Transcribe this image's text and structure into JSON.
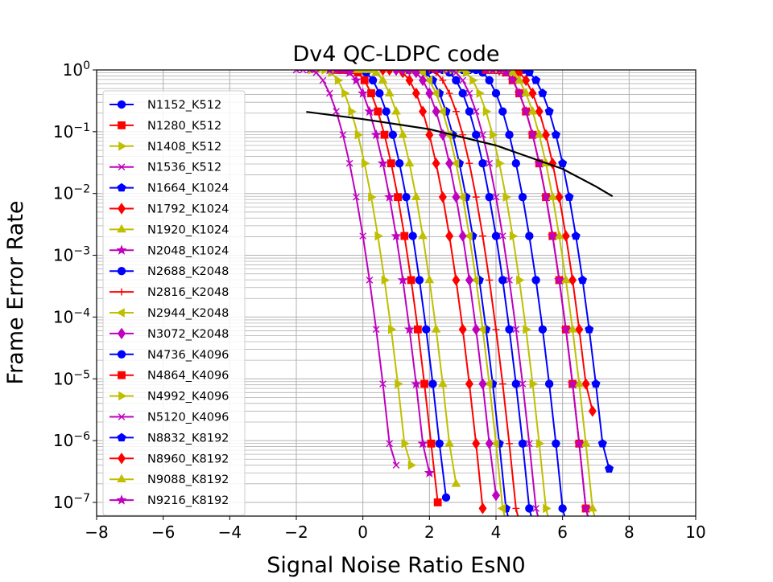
{
  "chart_data": {
    "type": "line",
    "title": "Dv4 QC-LDPC code",
    "xlabel": "Signal Noise Ratio EsN0",
    "ylabel": "Frame Error Rate",
    "xlim": [
      -8,
      10
    ],
    "ylim": [
      6e-08,
      1
    ],
    "yscale": "log",
    "grid": true,
    "legend_position": "top-left",
    "x_ticks": [
      "−8",
      "−6",
      "−4",
      "−2",
      "0",
      "2",
      "4",
      "6",
      "8",
      "10"
    ],
    "y_ticks": [
      {
        "base": "10",
        "exp": "−7"
      },
      {
        "base": "10",
        "exp": "−6"
      },
      {
        "base": "10",
        "exp": "−5"
      },
      {
        "base": "10",
        "exp": "−4"
      },
      {
        "base": "10",
        "exp": "−3"
      },
      {
        "base": "10",
        "exp": "−2"
      },
      {
        "base": "10",
        "exp": "−1"
      },
      {
        "base": "10",
        "exp": "0"
      }
    ],
    "series": [
      {
        "name": "N1152_K512",
        "color": "#0000ff",
        "marker": "circle",
        "waterfall_x": 2.5,
        "floor_fer": 1.2e-07
      },
      {
        "name": "N1280_K512",
        "color": "#ff0000",
        "marker": "square",
        "waterfall_x": 2.25,
        "floor_fer": 1e-07
      },
      {
        "name": "N1408_K512",
        "color": "#bfbf00",
        "marker": "triangle-right",
        "waterfall_x": 1.45,
        "floor_fer": 4e-07
      },
      {
        "name": "N1536_K512",
        "color": "#bf00bf",
        "marker": "x",
        "waterfall_x": 1.0,
        "floor_fer": 4e-07
      },
      {
        "name": "N1664_K1024",
        "color": "#0000ff",
        "marker": "pentagon",
        "waterfall_x": 4.3,
        "floor_fer": 3e-08
      },
      {
        "name": "N1792_K1024",
        "color": "#ff0000",
        "marker": "diamond",
        "waterfall_x": 3.6,
        "floor_fer": 8e-08
      },
      {
        "name": "N1920_K1024",
        "color": "#bfbf00",
        "marker": "triangle-up",
        "waterfall_x": 2.8,
        "floor_fer": 2e-07
      },
      {
        "name": "N2048_K1024",
        "color": "#bf00bf",
        "marker": "star",
        "waterfall_x": 2.0,
        "floor_fer": 3e-07
      },
      {
        "name": "N2688_K2048",
        "color": "#0000ff",
        "marker": "circle",
        "waterfall_x": 5.0,
        "floor_fer": 3e-08
      },
      {
        "name": "N2816_K2048",
        "color": "#ff0000",
        "marker": "plus",
        "waterfall_x": 4.6,
        "floor_fer": 3e-08
      },
      {
        "name": "N2944_K2048",
        "color": "#bfbf00",
        "marker": "triangle-left",
        "waterfall_x": 4.2,
        "floor_fer": 3e-08
      },
      {
        "name": "N3072_K2048",
        "color": "#bf00bf",
        "marker": "diamond",
        "waterfall_x": 4.0,
        "floor_fer": 1.3e-07
      },
      {
        "name": "N4736_K4096",
        "color": "#0000ff",
        "marker": "circle",
        "waterfall_x": 6.0,
        "floor_fer": 3e-08
      },
      {
        "name": "N4864_K4096",
        "color": "#ff0000",
        "marker": "square",
        "waterfall_x": 6.7,
        "floor_fer": 3e-08
      },
      {
        "name": "N4992_K4096",
        "color": "#bfbf00",
        "marker": "triangle-right",
        "waterfall_x": 5.5,
        "floor_fer": 3e-08
      },
      {
        "name": "N5120_K4096",
        "color": "#bf00bf",
        "marker": "x",
        "waterfall_x": 5.2,
        "floor_fer": 3e-08
      },
      {
        "name": "N8832_K8192",
        "color": "#0000ff",
        "marker": "pentagon",
        "waterfall_x": 7.4,
        "floor_fer": 3.5e-07
      },
      {
        "name": "N8960_K8192",
        "color": "#ff0000",
        "marker": "diamond",
        "waterfall_x": 7.1,
        "floor_fer": 3e-06
      },
      {
        "name": "N9088_K8192",
        "color": "#bfbf00",
        "marker": "triangle-up",
        "waterfall_x": 6.9,
        "floor_fer": 3e-08
      },
      {
        "name": "N9216_K8192",
        "color": "#bf00bf",
        "marker": "star",
        "waterfall_x": 6.7,
        "floor_fer": 3e-08
      }
    ],
    "reference_curve": {
      "color": "#000000",
      "x": [
        -1.7,
        0,
        2,
        4,
        6,
        7.0,
        7.5
      ],
      "y": [
        0.21,
        0.16,
        0.11,
        0.06,
        0.025,
        0.013,
        0.009
      ]
    }
  }
}
